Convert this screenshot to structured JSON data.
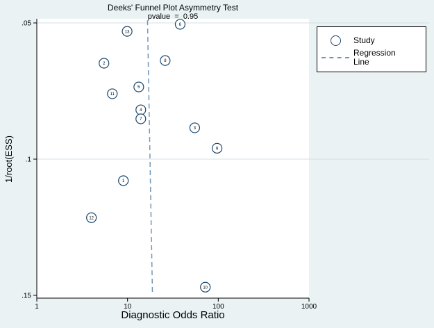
{
  "colors": {
    "background": "#eaf2f3",
    "plot_background": "#ffffff",
    "grid": "#d3e0e7",
    "axis": "#000000",
    "text": "#000000",
    "marker_stroke": "#1a476f",
    "regression": "#7396b5"
  },
  "chart_data": {
    "type": "scatter",
    "title": "Deeks' Funnel Plot Asymmetry Test",
    "subtitle": "pvalue  =  0.95",
    "pvalue": 0.95,
    "xlabel": "Diagnostic Odds Ratio",
    "ylabel": "1/root(ESS)",
    "x_scale": "log10",
    "xlim": [
      1,
      1000
    ],
    "ylim": [
      0.05,
      0.15
    ],
    "y_axis_direction": "reversed (0.05 at top, 0.15 at bottom)",
    "grid": "horizontal gridlines at y ticks",
    "legend_position": "top-right, outside plot",
    "legend": {
      "study": "Study",
      "regression": "Regression Line"
    },
    "x_ticks": [
      {
        "value": 1,
        "label": "1"
      },
      {
        "value": 10,
        "label": "10"
      },
      {
        "value": 100,
        "label": "100"
      },
      {
        "value": 1000,
        "label": "1000"
      }
    ],
    "y_ticks": [
      {
        "value": 0.05,
        "label": ".05",
        "grid": true
      },
      {
        "value": 0.1,
        "label": ".1",
        "grid": true
      },
      {
        "value": 0.15,
        "label": ".15",
        "grid": false
      }
    ],
    "points": [
      {
        "study": 1,
        "dor": 9.0,
        "inv_root_ess": 0.1079
      },
      {
        "study": 2,
        "dor": 5.5,
        "inv_root_ess": 0.0648
      },
      {
        "study": 3,
        "dor": 55,
        "inv_root_ess": 0.0885
      },
      {
        "study": 4,
        "dor": 14,
        "inv_root_ess": 0.0819
      },
      {
        "study": 5,
        "dor": 13.3,
        "inv_root_ess": 0.0735
      },
      {
        "study": 6,
        "dor": 38,
        "inv_root_ess": 0.0505
      },
      {
        "study": 7,
        "dor": 14,
        "inv_root_ess": 0.0852
      },
      {
        "study": 8,
        "dor": 26,
        "inv_root_ess": 0.0638
      },
      {
        "study": 9,
        "dor": 97,
        "inv_root_ess": 0.096
      },
      {
        "study": 10,
        "dor": 72,
        "inv_root_ess": 0.147
      },
      {
        "study": 11,
        "dor": 6.8,
        "inv_root_ess": 0.076
      },
      {
        "study": 12,
        "dor": 4.0,
        "inv_root_ess": 0.1215
      },
      {
        "study": 13,
        "dor": 9.9,
        "inv_root_ess": 0.0531
      }
    ],
    "regression_line": {
      "x1": 16.6,
      "y1": 0.049,
      "x2": 18.8,
      "y2": 0.149
    }
  }
}
